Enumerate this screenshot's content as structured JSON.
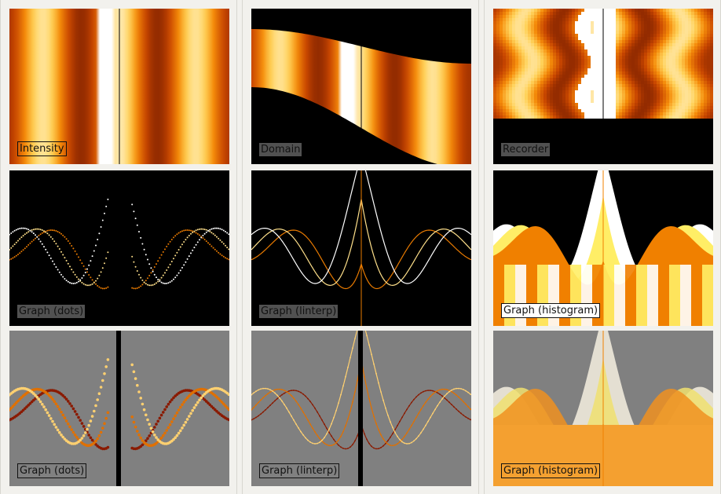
{
  "columns": [
    {
      "panels": [
        {
          "label": "Intensity",
          "view": "intensity"
        },
        {
          "label": "Graph (dots)",
          "view": "graph-dots-black"
        },
        {
          "label": "Graph (dots)",
          "view": "graph-dots-gray"
        }
      ]
    },
    {
      "panels": [
        {
          "label": "Domain",
          "view": "domain"
        },
        {
          "label": "Graph (linterp)",
          "view": "graph-linterp-black"
        },
        {
          "label": "Graph (linterp)",
          "view": "graph-linterp-gray"
        }
      ]
    },
    {
      "panels": [
        {
          "label": "Recorder",
          "view": "recorder"
        },
        {
          "label": "Graph (histogram)",
          "view": "graph-histogram-black"
        },
        {
          "label": "Graph (histogram)",
          "view": "graph-histogram-gray"
        }
      ]
    }
  ],
  "colors": {
    "background": "#f2f1ed",
    "panel_black": "#000000",
    "panel_gray": "#808080",
    "heat_dark": "#5a0a00",
    "heat_mid": "#ee7a00",
    "heat_light": "#ffffff"
  }
}
